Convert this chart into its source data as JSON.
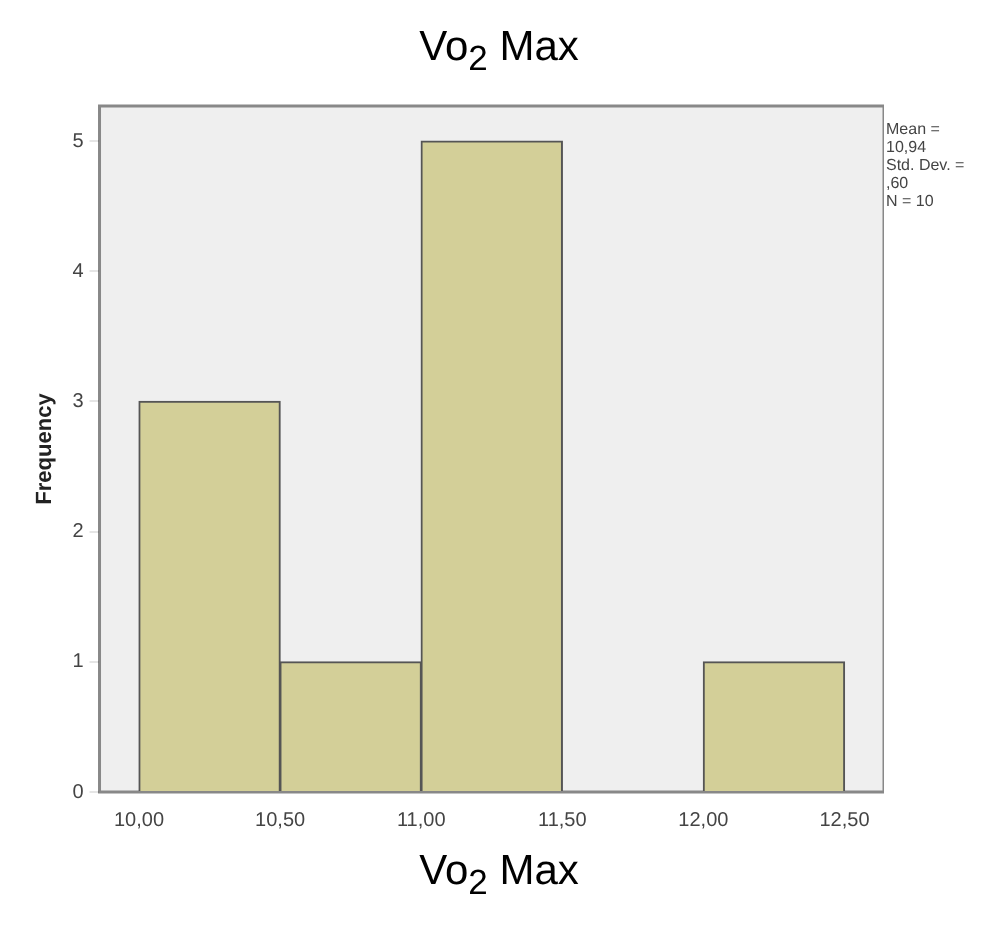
{
  "chart_data": {
    "type": "histogram",
    "title": "Vo$_{2}$ Max",
    "xlabel": "Vo$_{2}$ Max",
    "ylabel": "Frequency",
    "bins": [
      10,
      10.5,
      11,
      11.5,
      12,
      12.5
    ],
    "values": [
      3,
      1,
      5,
      0,
      1
    ],
    "color": "#d3cf98",
    "xlim": [
      9.86,
      12.64
    ],
    "xticks": [
      {
        "value": 10,
        "label": "10,00"
      },
      {
        "value": 10.5,
        "label": "10,50"
      },
      {
        "value": 11,
        "label": "11,00"
      },
      {
        "value": 11.5,
        "label": "11,50"
      },
      {
        "value": 12,
        "label": "12,00"
      },
      {
        "value": 12.5,
        "label": "12,50"
      }
    ],
    "ylim": [
      0,
      5.27
    ],
    "yticks": [
      0,
      1,
      2,
      3,
      4,
      5
    ],
    "grid": false,
    "legend": false,
    "annotations": [
      "Mean = 10,94",
      "Std. Dev. = ,60",
      "N = 10"
    ]
  }
}
